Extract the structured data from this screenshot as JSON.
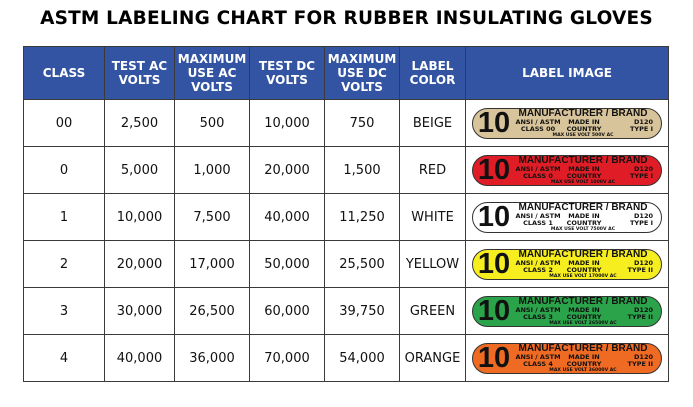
{
  "title": "ASTM LABELING CHART FOR RUBBER INSULATING GLOVES",
  "headers": {
    "class": "CLASS",
    "test_ac": "TEST AC VOLTS",
    "max_ac": "MAXIMUM USE AC VOLTS",
    "test_dc": "TEST DC VOLTS",
    "max_dc": "MAXIMUM USE DC VOLTS",
    "label_color": "LABEL COLOR",
    "label_image": "LABEL IMAGE"
  },
  "rows": [
    {
      "class": "00",
      "test_ac": "2,500",
      "max_ac": "500",
      "test_dc": "10,000",
      "max_dc": "750",
      "color": "BEIGE",
      "swatch": "#d8c49a",
      "label": {
        "number": "10",
        "brand": "MANUFACTURER / BRAND",
        "standard": "ANSI / ASTM",
        "made_in": "MADE IN",
        "code": "D120",
        "class_text": "CLASS 00",
        "country": "COUNTRY",
        "type": "TYPE I",
        "max_volt": "MAX USE VOLT 500V AC"
      }
    },
    {
      "class": "0",
      "test_ac": "5,000",
      "max_ac": "1,000",
      "test_dc": "20,000",
      "max_dc": "1,500",
      "color": "RED",
      "swatch": "#e01d26",
      "label": {
        "number": "10",
        "brand": "MANUFACTURER / BRAND",
        "standard": "ANSI / ASTM",
        "made_in": "MADE IN",
        "code": "D120",
        "class_text": "CLASS 0",
        "country": "COUNTRY",
        "type": "TYPE I",
        "max_volt": "MAX USE VOLT 1000V AC"
      }
    },
    {
      "class": "1",
      "test_ac": "10,000",
      "max_ac": "7,500",
      "test_dc": "40,000",
      "max_dc": "11,250",
      "color": "WHITE",
      "swatch": "#ffffff",
      "label": {
        "number": "10",
        "brand": "MANUFACTURER / BRAND",
        "standard": "ANSI / ASTM",
        "made_in": "MADE IN",
        "code": "D120",
        "class_text": "CLASS 1",
        "country": "COUNTRY",
        "type": "TYPE I",
        "max_volt": "MAX USE VOLT 7500V AC"
      }
    },
    {
      "class": "2",
      "test_ac": "20,000",
      "max_ac": "17,000",
      "test_dc": "50,000",
      "max_dc": "25,500",
      "color": "YELLOW",
      "swatch": "#f6ee1f",
      "label": {
        "number": "10",
        "brand": "MANUFACTURER / BRAND",
        "standard": "ANSI / ASTM",
        "made_in": "MADE IN",
        "code": "D120",
        "class_text": "CLASS 2",
        "country": "COUNTRY",
        "type": "TYPE II",
        "max_volt": "MAX USE VOLT 17000V AC"
      }
    },
    {
      "class": "3",
      "test_ac": "30,000",
      "max_ac": "26,500",
      "test_dc": "60,000",
      "max_dc": "39,750",
      "color": "GREEN",
      "swatch": "#2aa34a",
      "label": {
        "number": "10",
        "brand": "MANUFACTURER / BRAND",
        "standard": "ANSI / ASTM",
        "made_in": "MADE IN",
        "code": "D120",
        "class_text": "CLASS 3",
        "country": "COUNTRY",
        "type": "TYPE II",
        "max_volt": "MAX USE VOLT 26500V AC"
      }
    },
    {
      "class": "4",
      "test_ac": "40,000",
      "max_ac": "36,000",
      "test_dc": "70,000",
      "max_dc": "54,000",
      "color": "ORANGE",
      "swatch": "#ef6a23",
      "label": {
        "number": "10",
        "brand": "MANUFACTURER / BRAND",
        "standard": "ANSI / ASTM",
        "made_in": "MADE IN",
        "code": "D120",
        "class_text": "CLASS 4",
        "country": "COUNTRY",
        "type": "TYPE II",
        "max_volt": "MAX USE VOLT 36000V AC"
      }
    }
  ]
}
